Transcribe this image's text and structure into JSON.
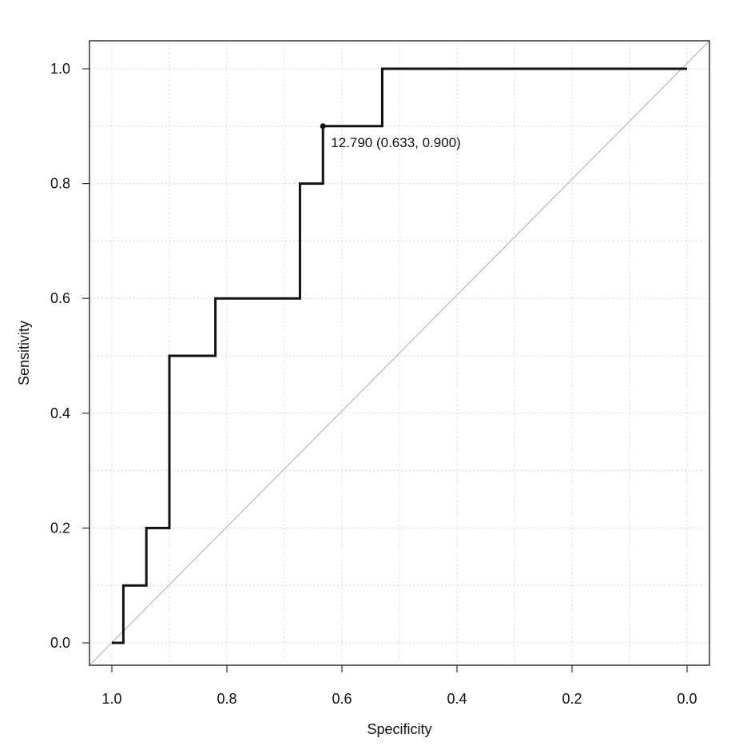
{
  "chart_data": {
    "type": "line",
    "title": "",
    "xlabel": "Specificity",
    "ylabel": "Sensitivity",
    "x_axis_reversed": true,
    "xlim": [
      1.0,
      0.0
    ],
    "ylim": [
      0.0,
      1.0
    ],
    "grid": true,
    "x_ticks": [
      1.0,
      0.8,
      0.6,
      0.4,
      0.2,
      0.0
    ],
    "x_tick_labels": [
      "1.0",
      "0.8",
      "0.6",
      "0.4",
      "0.2",
      "0.0"
    ],
    "y_ticks": [
      0.0,
      0.2,
      0.4,
      0.6,
      0.8,
      1.0
    ],
    "y_tick_labels": [
      "0.0",
      "0.2",
      "0.4",
      "0.6",
      "0.8",
      "1.0"
    ],
    "series": [
      {
        "name": "ROC",
        "points": [
          {
            "specificity": 1.0,
            "sensitivity": 0.0
          },
          {
            "specificity": 0.98,
            "sensitivity": 0.0
          },
          {
            "specificity": 0.98,
            "sensitivity": 0.1
          },
          {
            "specificity": 0.94,
            "sensitivity": 0.1
          },
          {
            "specificity": 0.94,
            "sensitivity": 0.2
          },
          {
            "specificity": 0.9,
            "sensitivity": 0.2
          },
          {
            "specificity": 0.9,
            "sensitivity": 0.5
          },
          {
            "specificity": 0.82,
            "sensitivity": 0.5
          },
          {
            "specificity": 0.82,
            "sensitivity": 0.6
          },
          {
            "specificity": 0.673,
            "sensitivity": 0.6
          },
          {
            "specificity": 0.673,
            "sensitivity": 0.8
          },
          {
            "specificity": 0.633,
            "sensitivity": 0.8
          },
          {
            "specificity": 0.633,
            "sensitivity": 0.9
          },
          {
            "specificity": 0.53,
            "sensitivity": 0.9
          },
          {
            "specificity": 0.53,
            "sensitivity": 1.0
          },
          {
            "specificity": 0.0,
            "sensitivity": 1.0
          }
        ]
      }
    ],
    "reference_line": {
      "name": "chance",
      "from": {
        "specificity": 1.0,
        "sensitivity": 0.0
      },
      "to": {
        "specificity": 0.0,
        "sensitivity": 1.0
      }
    },
    "best_point": {
      "specificity": 0.633,
      "sensitivity": 0.9,
      "label": "12.790 (0.633, 0.900)"
    }
  }
}
